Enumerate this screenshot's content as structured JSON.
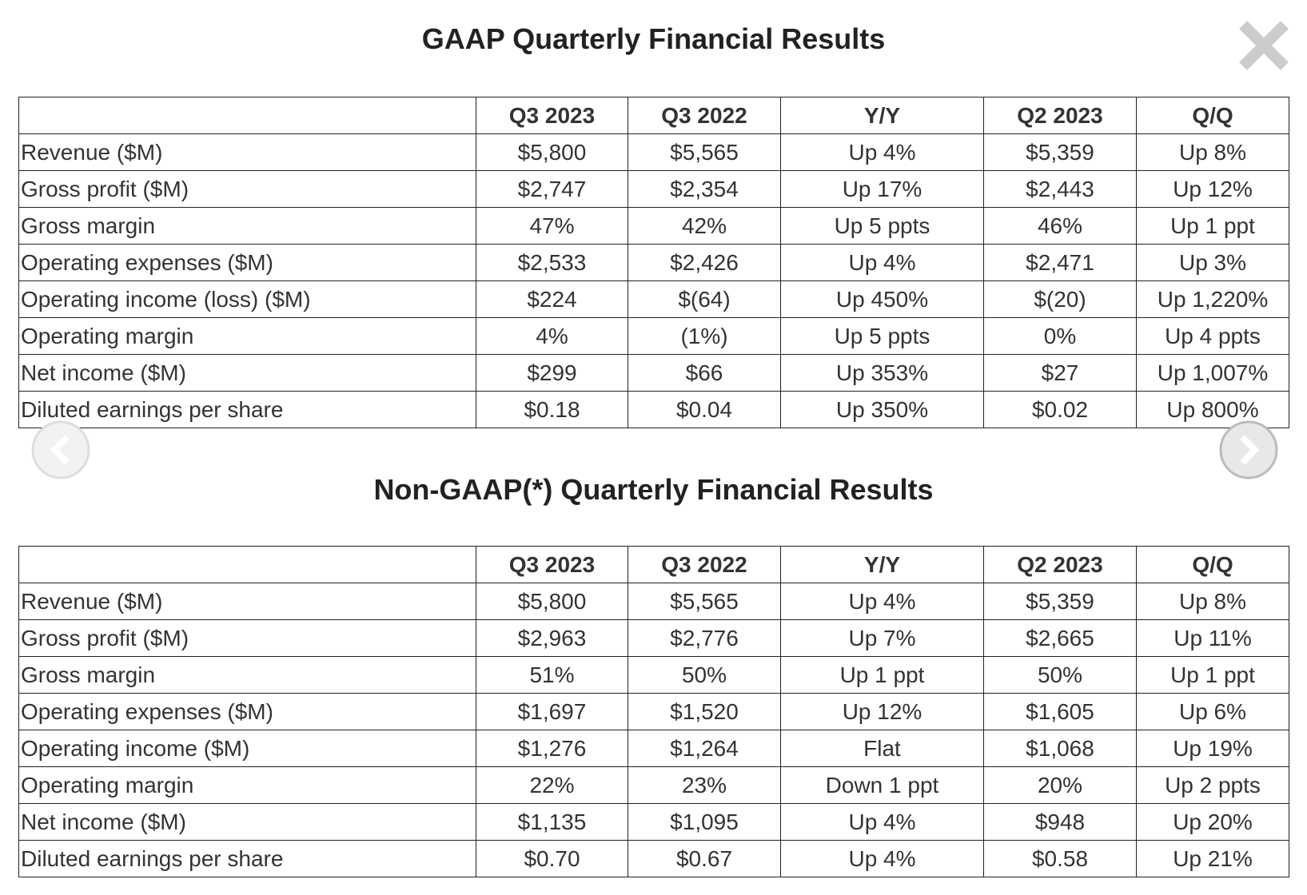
{
  "tables": [
    {
      "title": "GAAP Quarterly Financial Results",
      "columns": [
        "Q3 2023",
        "Q3 2022",
        "Y/Y",
        "Q2 2023",
        "Q/Q"
      ],
      "rows": [
        [
          "Revenue ($M)",
          "$5,800",
          "$5,565",
          "Up 4%",
          "$5,359",
          "Up 8%"
        ],
        [
          "Gross profit ($M)",
          "$2,747",
          "$2,354",
          "Up 17%",
          "$2,443",
          "Up 12%"
        ],
        [
          "Gross margin",
          "47%",
          "42%",
          "Up 5 ppts",
          "46%",
          "Up 1 ppt"
        ],
        [
          "Operating expenses ($M)",
          "$2,533",
          "$2,426",
          "Up 4%",
          "$2,471",
          "Up 3%"
        ],
        [
          "Operating income (loss) ($M)",
          "$224",
          "$(64)",
          "Up 450%",
          "$(20)",
          "Up 1,220%"
        ],
        [
          "Operating margin",
          "4%",
          "(1%)",
          "Up 5 ppts",
          "0%",
          "Up 4 ppts"
        ],
        [
          "Net income ($M)",
          "$299",
          "$66",
          "Up 353%",
          "$27",
          "Up 1,007%"
        ],
        [
          "Diluted earnings per share",
          "$0.18",
          "$0.04",
          "Up 350%",
          "$0.02",
          "Up 800%"
        ]
      ]
    },
    {
      "title": "Non-GAAP(*) Quarterly Financial Results",
      "columns": [
        "Q3 2023",
        "Q3 2022",
        "Y/Y",
        "Q2 2023",
        "Q/Q"
      ],
      "rows": [
        [
          "Revenue ($M)",
          "$5,800",
          "$5,565",
          "Up 4%",
          "$5,359",
          "Up 8%"
        ],
        [
          "Gross profit ($M)",
          "$2,963",
          "$2,776",
          "Up 7%",
          "$2,665",
          "Up 11%"
        ],
        [
          "Gross margin",
          "51%",
          "50%",
          "Up 1 ppt",
          "50%",
          "Up 1 ppt"
        ],
        [
          "Operating expenses ($M)",
          "$1,697",
          "$1,520",
          "Up 12%",
          "$1,605",
          "Up 6%"
        ],
        [
          "Operating income ($M)",
          "$1,276",
          "$1,264",
          "Flat",
          "$1,068",
          "Up 19%"
        ],
        [
          "Operating margin",
          "22%",
          "23%",
          "Down 1 ppt",
          "20%",
          "Up 2 ppts"
        ],
        [
          "Net income ($M)",
          "$1,135",
          "$1,095",
          "Up 4%",
          "$948",
          "Up 20%"
        ],
        [
          "Diluted earnings per share",
          "$0.70",
          "$0.67",
          "Up 4%",
          "$0.58",
          "Up 21%"
        ]
      ]
    }
  ]
}
